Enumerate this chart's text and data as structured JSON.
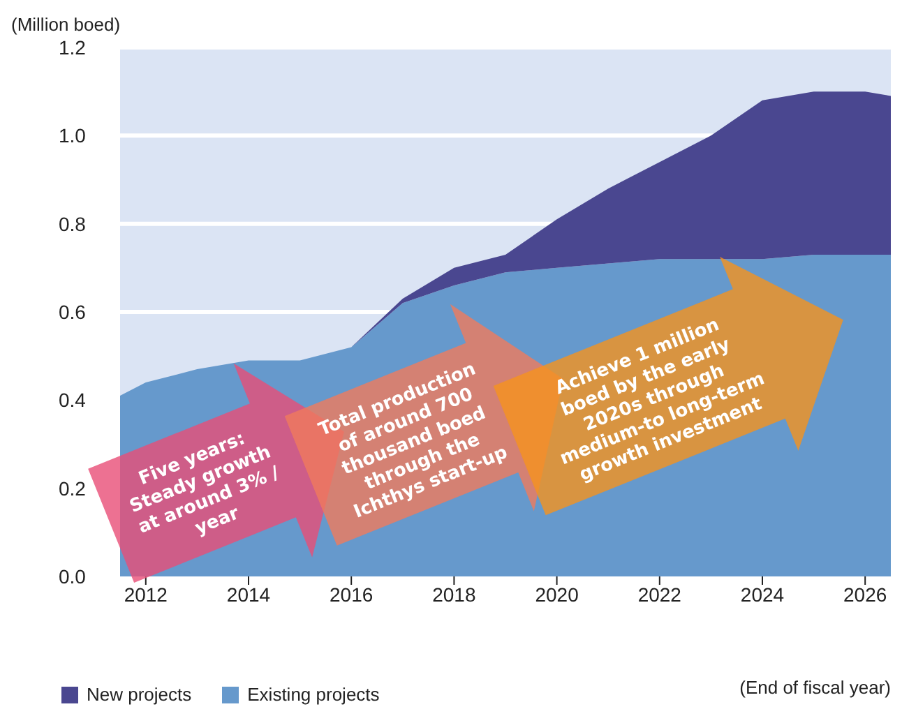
{
  "chart_data": {
    "type": "area",
    "stacked": true,
    "ylabel": "(Million boed)",
    "xlabel": "(End of fiscal year)",
    "x": [
      2011.5,
      2012,
      2013,
      2014,
      2015,
      2016,
      2017,
      2018,
      2019,
      2020,
      2021,
      2022,
      2023,
      2024,
      2025,
      2026,
      2026.5
    ],
    "series": [
      {
        "name": "Existing projects",
        "color": "#6699cc",
        "values": [
          0.41,
          0.44,
          0.47,
          0.49,
          0.49,
          0.52,
          0.62,
          0.66,
          0.69,
          0.7,
          0.71,
          0.72,
          0.72,
          0.72,
          0.73,
          0.73,
          0.73
        ]
      },
      {
        "name": "New projects",
        "color": "#4a4790",
        "values": [
          0,
          0,
          0,
          0,
          0,
          0,
          0.01,
          0.04,
          0.04,
          0.11,
          0.17,
          0.22,
          0.28,
          0.36,
          0.37,
          0.37,
          0.36
        ]
      }
    ],
    "xlim": [
      2011.5,
      2026.5
    ],
    "xticks": [
      2012,
      2014,
      2016,
      2018,
      2020,
      2022,
      2024,
      2026
    ],
    "ylim": [
      0,
      1.2
    ],
    "yticks": [
      {
        "value": 0,
        "label": "0.0"
      },
      0.2,
      0.4,
      0.6,
      0.8,
      {
        "value": 1,
        "label": "1.0"
      },
      1.2
    ],
    "grid": "y",
    "legend": "bottom left",
    "annotations": [
      "Five years: Steady growth at around 3% / year",
      "Total production of around 700 thousand boed through the Ichthys start-up",
      "Achieve 1 million boed by the early 2020s through medium-to long-term growth investment"
    ]
  }
}
